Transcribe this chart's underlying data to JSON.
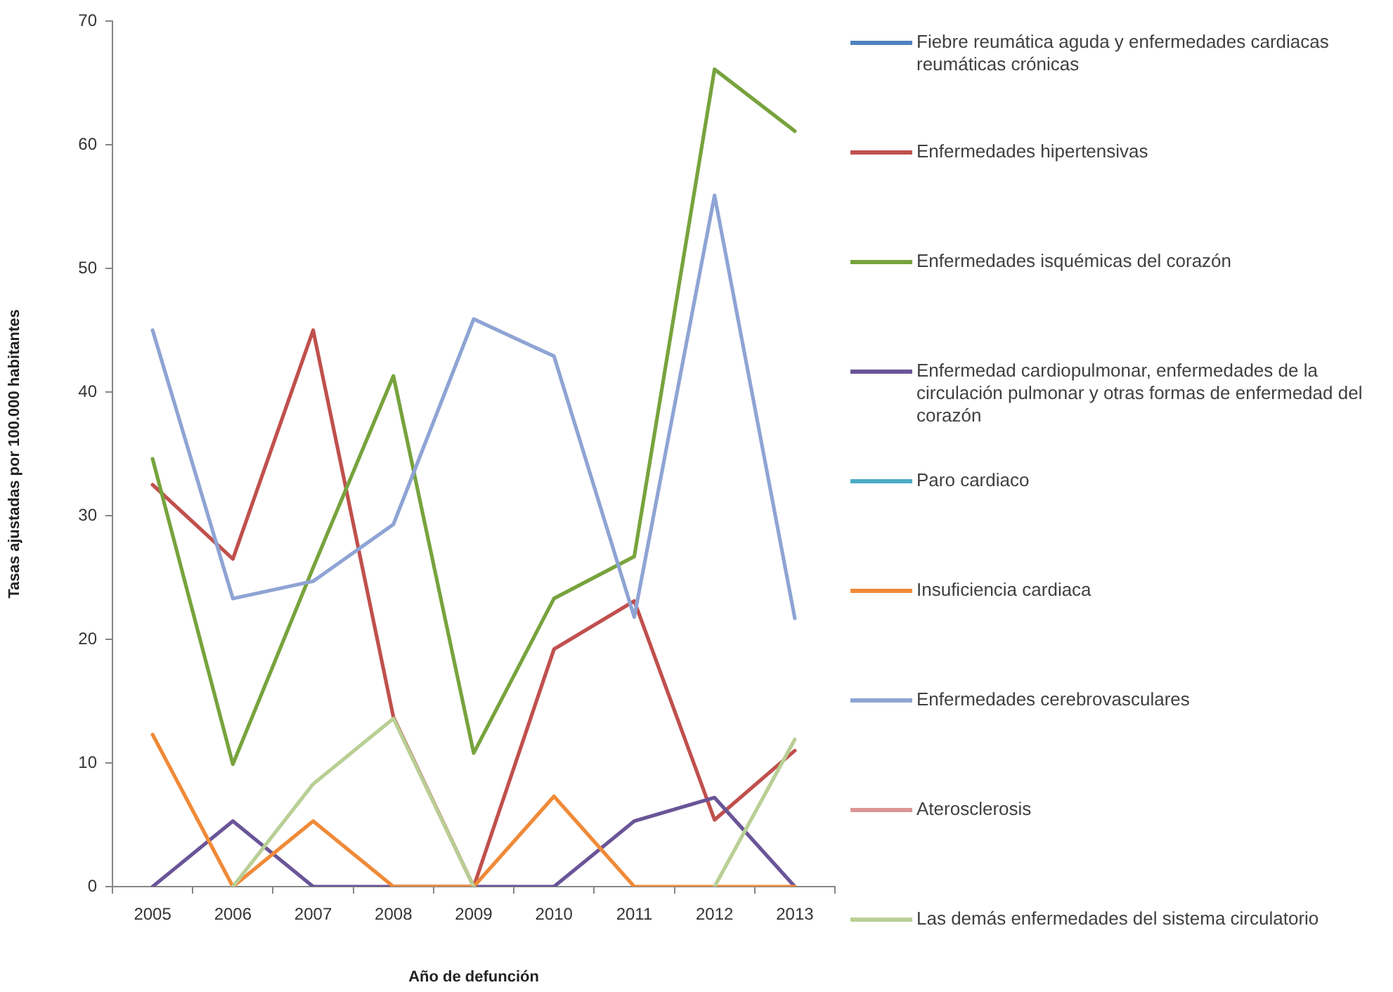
{
  "chart_data": {
    "type": "line",
    "xlabel": "Año de defunción",
    "ylabel": "Tasas ajustadas por 100.000 habitantes",
    "categories": [
      "2005",
      "2006",
      "2007",
      "2008",
      "2009",
      "2010",
      "2011",
      "2012",
      "2013"
    ],
    "series": [
      {
        "name": "Fiebre reumática aguda y enfermedades cardiacas reumáticas crónicas",
        "color": "#4f81bd",
        "values": [
          null,
          null,
          null,
          null,
          null,
          null,
          null,
          null,
          null
        ]
      },
      {
        "name": "Enfermedades hipertensivas",
        "color": "#c0504d",
        "values": [
          32.5,
          26.5,
          45.0,
          13.7,
          0,
          19.2,
          23.1,
          5.4,
          11.0
        ]
      },
      {
        "name": "Enfermedades isquémicas del corazón",
        "color": "#77a33d",
        "values": [
          34.6,
          9.9,
          25.8,
          41.3,
          10.8,
          23.3,
          26.7,
          66.1,
          61.1
        ]
      },
      {
        "name": "Enfermedad cardiopulmonar, enfermedades de la circulación pulmonar y otras formas de enfermedad del corazón",
        "color": "#6a5597",
        "values": [
          0,
          5.3,
          0,
          0,
          0,
          0,
          5.3,
          7.2,
          0
        ]
      },
      {
        "name": "Paro cardiaco",
        "color": "#4bacc6",
        "values": [
          null,
          null,
          null,
          null,
          null,
          null,
          null,
          null,
          null
        ]
      },
      {
        "name": "Insuficiencia cardiaca",
        "color": "#f08a38",
        "values": [
          12.3,
          0,
          5.3,
          0,
          0,
          7.3,
          0,
          0,
          0
        ]
      },
      {
        "name": "Enfermedades cerebrovasculares",
        "color": "#8ea4d4",
        "values": [
          45.0,
          23.3,
          24.7,
          29.3,
          45.9,
          42.9,
          21.8,
          55.9,
          21.7
        ]
      },
      {
        "name": "Aterosclerosis",
        "color": "#d99694",
        "values": [
          null,
          null,
          null,
          null,
          null,
          null,
          null,
          null,
          null
        ]
      },
      {
        "name": "Las demás enfermedades del sistema circulatorio",
        "color": "#b9cf95",
        "values": [
          null,
          0,
          8.3,
          13.6,
          0,
          null,
          null,
          0,
          11.9
        ]
      }
    ],
    "ylim": [
      0,
      70
    ],
    "yticks": [
      0,
      10,
      20,
      30,
      40,
      50,
      60,
      70
    ],
    "grid": false,
    "legend": "right",
    "marker": "none",
    "line_style": "solid"
  }
}
